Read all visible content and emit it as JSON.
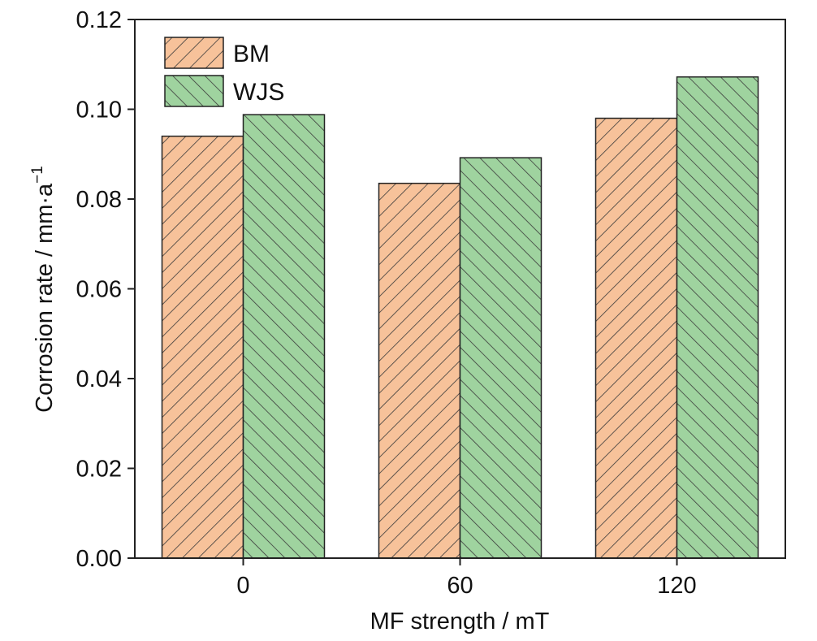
{
  "chart_data": {
    "type": "bar",
    "categories": [
      "0",
      "60",
      "120"
    ],
    "series": [
      {
        "name": "BM",
        "values": [
          0.094,
          0.0835,
          0.098
        ],
        "color": "#f7c29a",
        "hatch": "forward-diagonal"
      },
      {
        "name": "WJS",
        "values": [
          0.0988,
          0.0892,
          0.1072
        ],
        "color": "#9fd39f",
        "hatch": "back-diagonal"
      }
    ],
    "xlabel": "MF strength / mT",
    "ylabel": "Corrosion rate / mm·a",
    "ylabel_superscript": "−1",
    "ylim": [
      0,
      0.12
    ],
    "yticks": [
      "0.00",
      "0.02",
      "0.04",
      "0.06",
      "0.08",
      "0.10",
      "0.12"
    ],
    "legend_position": "top-left",
    "grid": false
  }
}
